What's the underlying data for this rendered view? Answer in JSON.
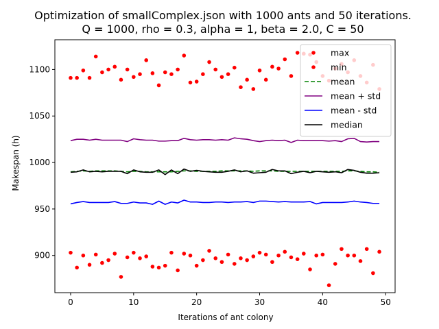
{
  "chart_data": {
    "type": "line",
    "title_lines": [
      "Optimization of smallComplex.json with 1000 ants and 50 iterations.",
      "Q = 1000, rho = 0.3, alpha = 1, beta = 2.0, C = 50"
    ],
    "xlabel": "Iterations of ant colony",
    "ylabel": "Makespan (h)",
    "xlim": [
      -2.5,
      51.5
    ],
    "ylim": [
      860,
      1132
    ],
    "xticks": [
      0,
      10,
      20,
      30,
      40,
      50
    ],
    "yticks": [
      900,
      950,
      1000,
      1050,
      1100
    ],
    "grid": false,
    "legend_position": "top-right",
    "x": [
      0,
      1,
      2,
      3,
      4,
      5,
      6,
      7,
      8,
      9,
      10,
      11,
      12,
      13,
      14,
      15,
      16,
      17,
      18,
      19,
      20,
      21,
      22,
      23,
      24,
      25,
      26,
      27,
      28,
      29,
      30,
      31,
      32,
      33,
      34,
      35,
      36,
      37,
      38,
      39,
      40,
      41,
      42,
      43,
      44,
      45,
      46,
      47,
      48,
      49
    ],
    "series": [
      {
        "name": "max",
        "style": "points",
        "color": "#ff0000",
        "values": [
          1091,
          1091,
          1099,
          1091,
          1114,
          1097,
          1100,
          1103,
          1089,
          1100,
          1092,
          1095,
          1110,
          1096,
          1083,
          1097,
          1095,
          1100,
          1115,
          1086,
          1087,
          1095,
          1108,
          1100,
          1092,
          1095,
          1102,
          1081,
          1089,
          1079,
          1099,
          1089,
          1103,
          1101,
          1111,
          1093,
          1118,
          1117,
          1116,
          1108,
          1093,
          1088,
          1101,
          1106,
          1097,
          1110,
          1093,
          1086,
          1105,
          1079
        ]
      },
      {
        "name": "min",
        "style": "points",
        "color": "#ff0000",
        "values": [
          903,
          887,
          900,
          890,
          901,
          892,
          895,
          902,
          877,
          898,
          903,
          897,
          899,
          888,
          887,
          889,
          903,
          884,
          902,
          900,
          889,
          895,
          905,
          897,
          893,
          901,
          891,
          897,
          895,
          899,
          903,
          901,
          893,
          900,
          904,
          898,
          896,
          902,
          885,
          900,
          901,
          868,
          891,
          907,
          900,
          900,
          894,
          907,
          881,
          904
        ]
      },
      {
        "name": "mean",
        "style": "dashed",
        "color": "#008000",
        "values": [
          990,
          990.5,
          991,
          990.5,
          991,
          991,
          991,
          991,
          990.5,
          990,
          990.5,
          990.5,
          990,
          990,
          990,
          990,
          990,
          990.5,
          991,
          991,
          990.5,
          990.5,
          990.5,
          990.5,
          991,
          991,
          991,
          991,
          991,
          990.5,
          991,
          991,
          991,
          990.5,
          990.5,
          990.5,
          990.5,
          990.5,
          990.5,
          990.5,
          990.5,
          990.5,
          990.5,
          990.5,
          991,
          991,
          990.5,
          990,
          990,
          989.5
        ]
      },
      {
        "name": "mean + std",
        "style": "solid",
        "color": "#800080",
        "values": [
          1023.5,
          1025,
          1025,
          1024,
          1025,
          1024,
          1024,
          1024,
          1024,
          1022.5,
          1025.5,
          1024.5,
          1024,
          1024,
          1023,
          1023,
          1023.5,
          1023.5,
          1026,
          1024.5,
          1024,
          1024.5,
          1024.5,
          1024,
          1024.5,
          1024,
          1026.5,
          1025.5,
          1025,
          1023.5,
          1022.5,
          1023.5,
          1024,
          1023.5,
          1024,
          1021.5,
          1024,
          1023.5,
          1023.5,
          1023.5,
          1023.5,
          1023,
          1023.5,
          1022.5,
          1025.5,
          1026,
          1022.5,
          1022,
          1022.5,
          1022.5
        ]
      },
      {
        "name": "mean - std",
        "style": "solid",
        "color": "#0000ff",
        "values": [
          955.5,
          957,
          958,
          957,
          957,
          957,
          957,
          958,
          956,
          956,
          957.5,
          956.5,
          956.5,
          955,
          958.5,
          955,
          957.5,
          956.5,
          959.5,
          957.5,
          957.5,
          957,
          957,
          957.5,
          957.5,
          957,
          957.5,
          957.5,
          958,
          957,
          958.5,
          958.5,
          958,
          957.5,
          958,
          957.5,
          957.5,
          957.5,
          958,
          955.5,
          957,
          957,
          957,
          957,
          957.5,
          958.5,
          957.5,
          957,
          956,
          956
        ]
      },
      {
        "name": "median",
        "style": "solid",
        "color": "#000000",
        "values": [
          989.5,
          990,
          992,
          990,
          990.5,
          990,
          990.5,
          990.5,
          990.5,
          988,
          992,
          990,
          989.5,
          989.5,
          992,
          987,
          992,
          988,
          993,
          990.5,
          991.5,
          990.5,
          990,
          989.5,
          989.5,
          990.5,
          992,
          990,
          991,
          988.5,
          989,
          989.5,
          992.5,
          991,
          991,
          988,
          989.5,
          990.5,
          989,
          990.5,
          990,
          989.5,
          990,
          989,
          992.5,
          991.5,
          989.5,
          988.5,
          988.5,
          989
        ]
      }
    ]
  }
}
